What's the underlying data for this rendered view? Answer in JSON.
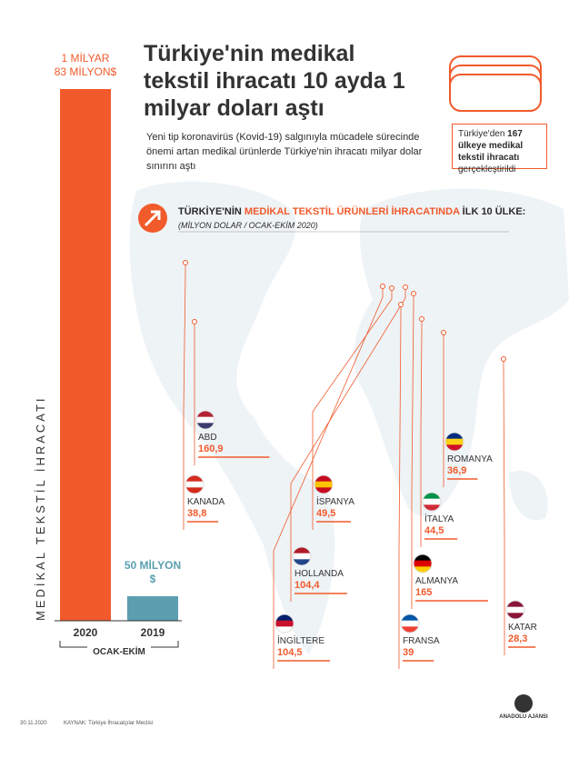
{
  "header": {
    "title": "Türkiye'nin medikal tekstil ihracatı 10 ayda 1 milyar doları aştı",
    "subtitle": "Yeni tip koronavirüs (Kovid-19) salgınıyla mücadele sürecinde önemi artan medikal ürünlerde Türkiye'nin ihracatı milyar dolar sınırını aştı"
  },
  "info_box": {
    "before": "Türkiye'den",
    "highlight": "167 ülkeye medikal tekstil ihracatı",
    "after": "gerçekleştirildi"
  },
  "chart_data": [
    {
      "type": "bar",
      "axis_label": "MEDİKAL TEKSTİL İHRACATI",
      "period": "OCAK-EKİM",
      "categories": [
        "2020",
        "2019"
      ],
      "values": [
        1083,
        50
      ],
      "value_labels": [
        "1 MİLYAR 83 MİLYON$",
        "50 MİLYON $"
      ],
      "colors": [
        "#f15a2b",
        "#5b9fb0"
      ]
    },
    {
      "type": "map-labels",
      "heading": {
        "before": "TÜRKİYE'NİN ",
        "highlight": "MEDİKAL TEKSTİL ÜRÜNLERİ İHRACATINDA",
        "after": " İLK 10 ÜLKE:",
        "unit": "(MİLYON DOLAR / OCAK-EKİM 2020)"
      },
      "categories": [
        "ABD",
        "KANADA",
        "İSPANYA",
        "HOLLANDA",
        "İNGİLTERE",
        "ROMANYA",
        "İTALYA",
        "ALMANYA",
        "FRANSA",
        "KATAR"
      ],
      "values": [
        160.9,
        38.8,
        49.5,
        104.4,
        104.5,
        36.9,
        44.5,
        165,
        39,
        28.3
      ],
      "value_labels": [
        "160,9",
        "38,8",
        "49,5",
        "104,4",
        "104,5",
        "36,9",
        "44,5",
        "165",
        "39",
        "28,3"
      ],
      "color": "#f15a2b"
    }
  ],
  "footer": {
    "date": "30.11.2020",
    "source": "KAYNAK: Türkiye İhracatçılar Meclisi",
    "logo": "ANADOLU AJANSI"
  }
}
